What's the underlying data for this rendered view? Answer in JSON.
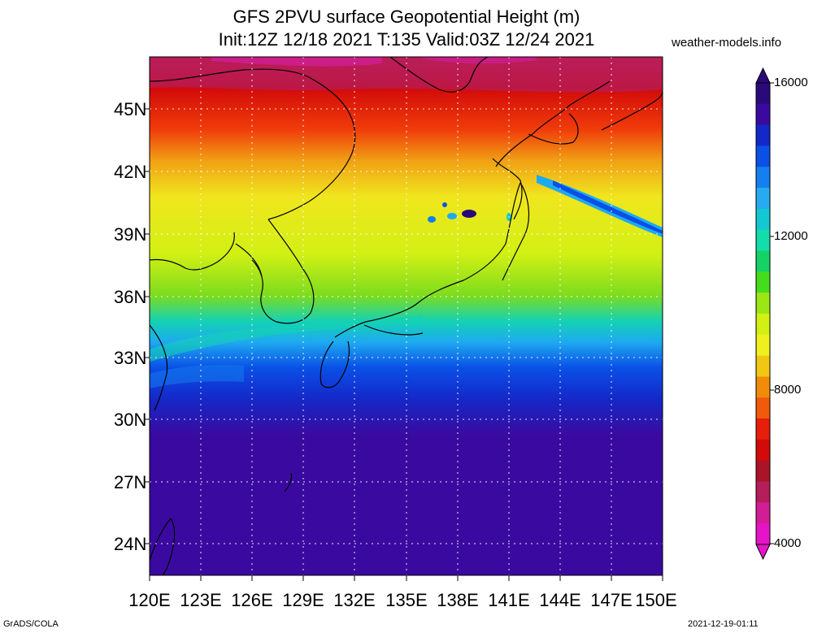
{
  "title_line1": "GFS 2PVU surface Geopotential Height (m)",
  "title_line2": "Init:12Z 12/18 2021 T:135 Valid:03Z 12/24 2021",
  "site": "weather-models.info",
  "footer_left": "GrADS/COLA",
  "footer_right": "2021-12-19-01:11",
  "lat_labels": [
    "45N",
    "42N",
    "39N",
    "36N",
    "33N",
    "30N",
    "27N",
    "24N"
  ],
  "lon_labels": [
    "120E",
    "123E",
    "126E",
    "129E",
    "132E",
    "135E",
    "138E",
    "141E",
    "144E",
    "147E",
    "150E"
  ],
  "colorbar": {
    "labels": [
      "16000",
      "12000",
      "8000",
      "4000"
    ],
    "colors": [
      "#2a0a7a",
      "#3a0aa0",
      "#1428c8",
      "#0a50e6",
      "#147ff0",
      "#28aaf0",
      "#14c8d2",
      "#14dcaa",
      "#14d264",
      "#46dc1e",
      "#9be614",
      "#d2f014",
      "#f0f01e",
      "#f0c814",
      "#f08c0a",
      "#f05a0a",
      "#e61e0a",
      "#d20a0a",
      "#aa1428",
      "#b41e5a",
      "#d21e96",
      "#e614c8"
    ]
  },
  "map": {
    "variable": "2PVU surface Geopotential Height",
    "units": "m",
    "lon_range": [
      120,
      150
    ],
    "lat_range": [
      22.5,
      47.5
    ]
  }
}
